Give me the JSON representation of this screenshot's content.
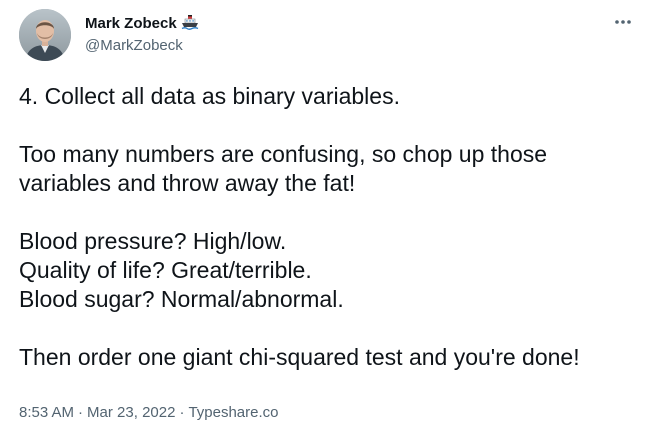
{
  "author": {
    "display_name": "Mark Zobeck",
    "handle": "@MarkZobeck",
    "badge_icon": "ship-icon",
    "avatar_icon": "profile-photo"
  },
  "menu": {
    "icon": "more-horizontal-icon"
  },
  "tweet": {
    "lines": [
      "4. Collect all data as binary variables.",
      "",
      "Too many numbers are confusing, so chop up those",
      "variables and throw away the fat!",
      "",
      "Blood pressure? High/low.",
      "Quality of life? Great/terrible.",
      "Blood sugar? Normal/abnormal.",
      "",
      "Then order one giant chi-squared test and you're done!"
    ]
  },
  "meta": {
    "time": "8:53 AM",
    "separator": "·",
    "date": "Mar 23, 2022",
    "source": "Typeshare.co"
  },
  "colors": {
    "text_primary": "#0f1419",
    "text_secondary": "#536471",
    "background": "#ffffff"
  }
}
